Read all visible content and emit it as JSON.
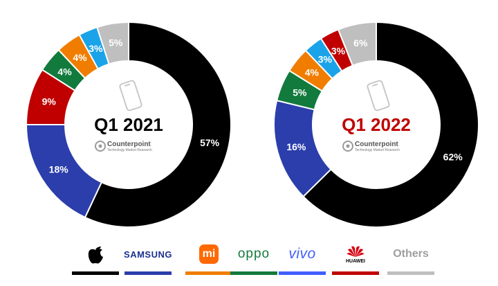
{
  "chart_data": [
    {
      "type": "pie",
      "title": "Q1 2021",
      "title_color": "#000000",
      "watermark": {
        "name": "Counterpoint",
        "tagline": "Technology Market Research"
      },
      "slices": [
        {
          "brand": "Apple",
          "value": 57,
          "label": "57%",
          "color": "#000000"
        },
        {
          "brand": "Samsung",
          "value": 18,
          "label": "18%",
          "color": "#2b3eab"
        },
        {
          "brand": "Huawei",
          "value": 9,
          "label": "9%",
          "color": "#c00000"
        },
        {
          "brand": "OPPO",
          "value": 4,
          "label": "4%",
          "color": "#127a3c"
        },
        {
          "brand": "Xiaomi",
          "value": 4,
          "label": "4%",
          "color": "#f07d00"
        },
        {
          "brand": "vivo",
          "value": 3,
          "label": "3%",
          "color": "#1aa3e8"
        },
        {
          "brand": "Others",
          "value": 5,
          "label": "5%",
          "color": "#bfbfbf"
        }
      ]
    },
    {
      "type": "pie",
      "title": "Q1 2022",
      "title_color": "#c00000",
      "watermark": {
        "name": "Counterpoint",
        "tagline": "Technology Market Research"
      },
      "slices": [
        {
          "brand": "Apple",
          "value": 62,
          "label": "62%",
          "color": "#000000"
        },
        {
          "brand": "Samsung",
          "value": 16,
          "label": "16%",
          "color": "#2b3eab"
        },
        {
          "brand": "OPPO",
          "value": 5,
          "label": "5%",
          "color": "#127a3c"
        },
        {
          "brand": "Xiaomi",
          "value": 4,
          "label": "4%",
          "color": "#f07d00"
        },
        {
          "brand": "vivo",
          "value": 3,
          "label": "3%",
          "color": "#1aa3e8"
        },
        {
          "brand": "Huawei",
          "value": 3,
          "label": "3%",
          "color": "#c00000"
        },
        {
          "brand": "Others",
          "value": 6,
          "label": "6%",
          "color": "#bfbfbf"
        }
      ]
    }
  ],
  "legend": {
    "items": [
      {
        "key": "apple",
        "icon": "apple-logo-icon",
        "swatch_color": "#000000"
      },
      {
        "key": "samsung",
        "text": "SAMSUNG",
        "swatch_color": "#2b3eab"
      },
      {
        "key": "xiaomi",
        "text": "mi",
        "icon": "xiaomi-logo-icon",
        "swatch_color": "#f07d00"
      },
      {
        "key": "oppo",
        "text": "oppo",
        "swatch_color": "#127a3c"
      },
      {
        "key": "vivo",
        "text": "vivo",
        "swatch_color": "#415fff"
      },
      {
        "key": "huawei",
        "text": "HUAWEI",
        "icon": "huawei-flower-icon",
        "swatch_color": "#c00000"
      },
      {
        "key": "others",
        "text": "Others",
        "swatch_color": "#bfbfbf"
      }
    ]
  }
}
